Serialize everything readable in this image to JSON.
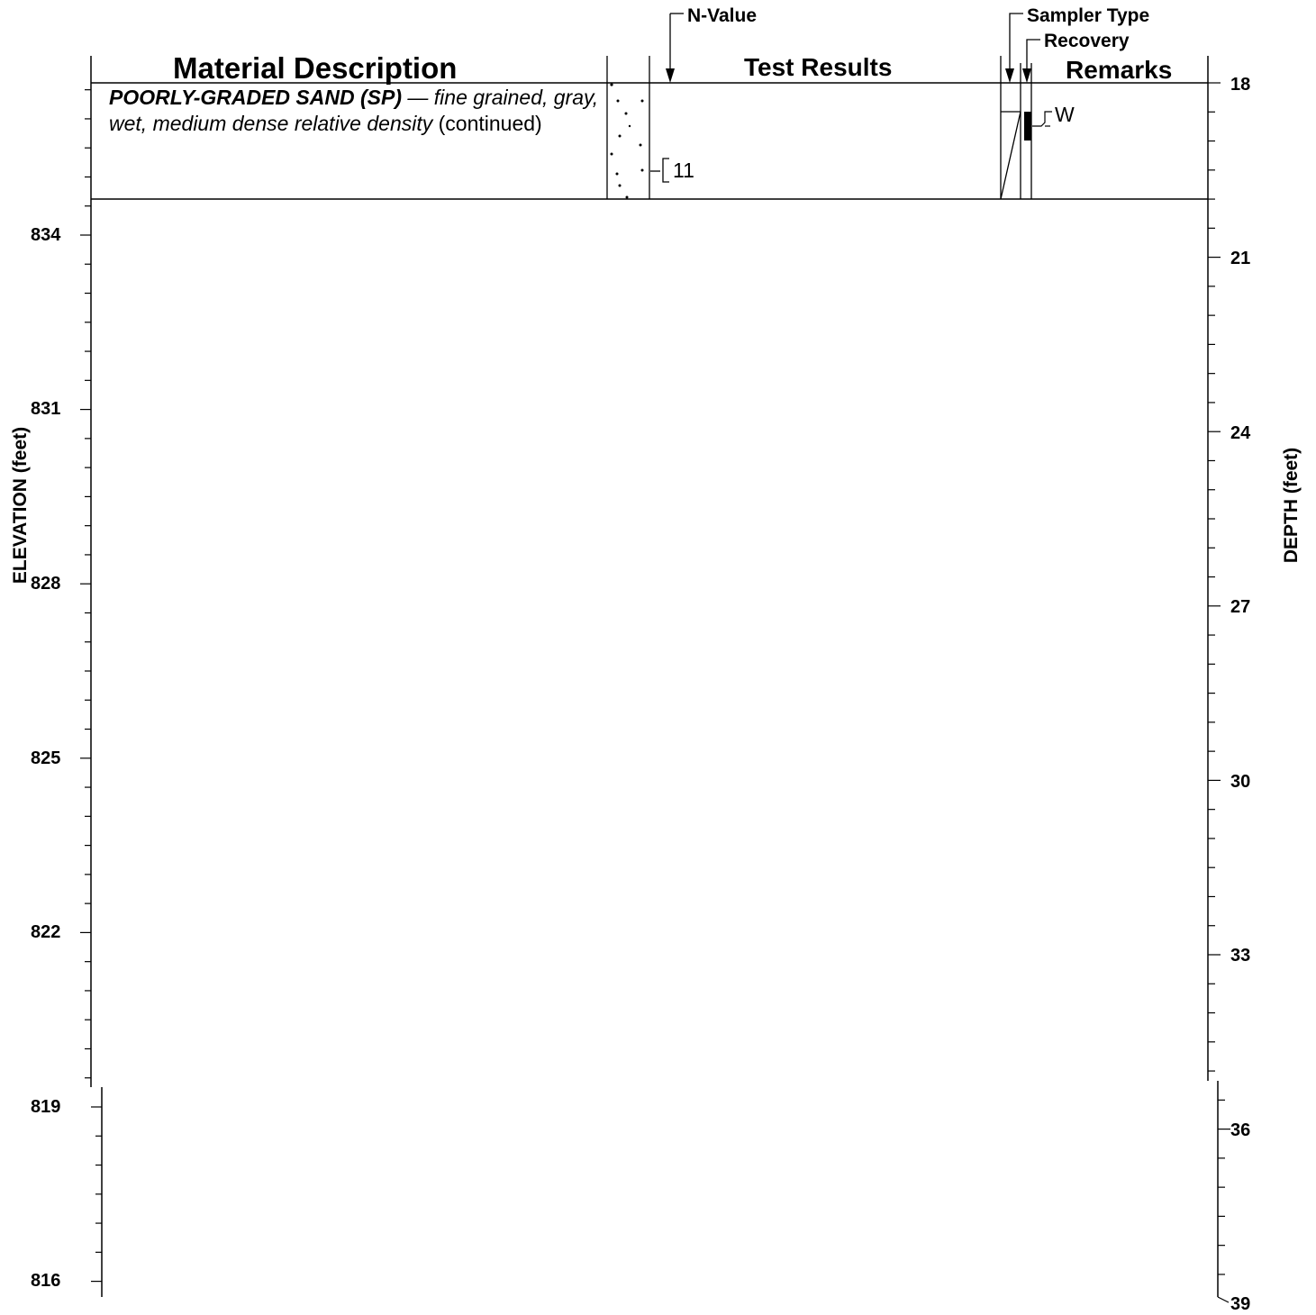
{
  "headers": {
    "material_description": "Material Description",
    "test_results": "Test Results",
    "remarks": "Remarks",
    "n_value": "N-Value",
    "sampler_type": "Sampler Type",
    "recovery": "Recovery"
  },
  "layer": {
    "name": "POORLY-GRADED SAND (SP)",
    "dash": " — ",
    "desc_italic": "fine grained, gray, wet, medium dense relative density",
    "suffix": " (continued)"
  },
  "sample": {
    "n_value": "11",
    "sampler_label": "W"
  },
  "elevation_axis": {
    "title": "ELEVATION (feet)",
    "labels": [
      "834",
      "831",
      "828",
      "825",
      "822",
      "819",
      "816"
    ]
  },
  "depth_axis": {
    "title": "DEPTH (feet)",
    "labels": [
      "18",
      "21",
      "24",
      "27",
      "30",
      "33",
      "36",
      "39"
    ]
  }
}
